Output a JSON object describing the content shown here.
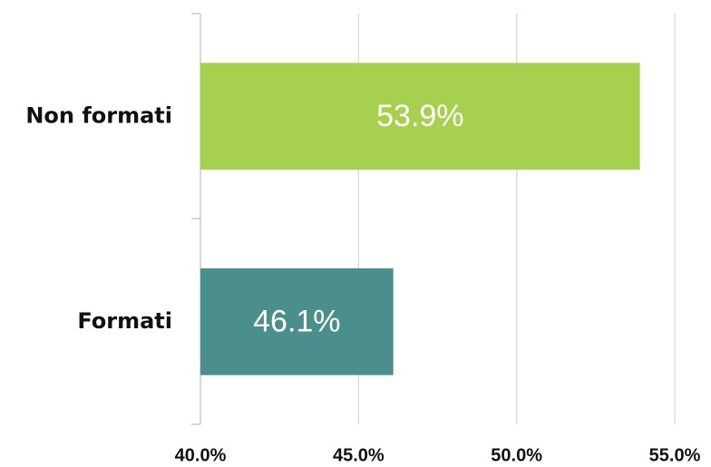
{
  "chart_data": {
    "type": "bar",
    "orientation": "horizontal",
    "categories": [
      "Non formati",
      "Formati"
    ],
    "values": [
      53.9,
      46.1
    ],
    "value_labels": [
      "53.9%",
      "46.1%"
    ],
    "colors": [
      "#a8d04f",
      "#4a8f8b"
    ],
    "xlim": [
      40,
      55
    ],
    "xticks": [
      {
        "value": 40,
        "label": "40.0%"
      },
      {
        "value": 45,
        "label": "45.0%"
      },
      {
        "value": 50,
        "label": "50.0%"
      },
      {
        "value": 55,
        "label": "55.0%"
      }
    ],
    "grid": true
  }
}
